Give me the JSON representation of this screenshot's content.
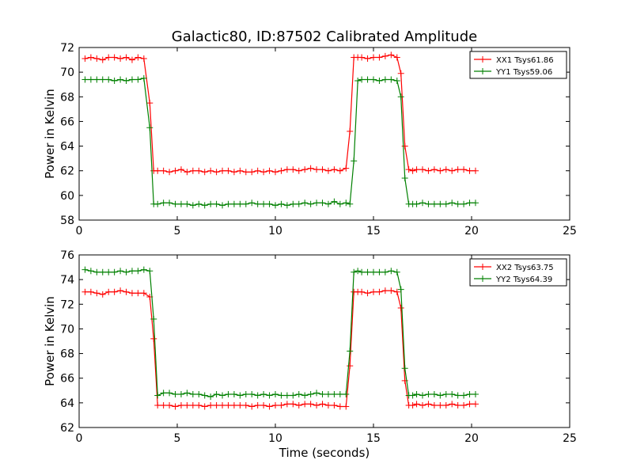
{
  "chart_data": [
    {
      "type": "line",
      "title": "Galactic80, ID:87502 Calibrated Amplitude",
      "xlabel": "",
      "ylabel": "Power in Kelvin",
      "xlim": [
        0,
        25
      ],
      "ylim": [
        58,
        72
      ],
      "xticks": [
        "0",
        "5",
        "10",
        "15",
        "20",
        "25"
      ],
      "yticks": [
        "58",
        "60",
        "62",
        "64",
        "66",
        "68",
        "70",
        "72"
      ],
      "legend_position": "top-right",
      "x": [
        0.3,
        0.6,
        0.9,
        1.2,
        1.5,
        1.8,
        2.1,
        2.4,
        2.7,
        3.0,
        3.3,
        3.6,
        3.8,
        4.0,
        4.3,
        4.6,
        4.9,
        5.2,
        5.5,
        5.8,
        6.1,
        6.4,
        6.7,
        7.0,
        7.3,
        7.6,
        7.9,
        8.2,
        8.5,
        8.8,
        9.1,
        9.4,
        9.7,
        10.0,
        10.3,
        10.6,
        10.9,
        11.2,
        11.5,
        11.8,
        12.1,
        12.4,
        12.7,
        13.0,
        13.3,
        13.6,
        13.8,
        14.0,
        14.2,
        14.4,
        14.7,
        15.0,
        15.3,
        15.6,
        15.9,
        16.2,
        16.4,
        16.6,
        16.8,
        17.0,
        17.2,
        17.5,
        17.8,
        18.1,
        18.4,
        18.7,
        19.0,
        19.3,
        19.6,
        19.9,
        20.2
      ],
      "series": [
        {
          "name": "XX1 Tsys61.86",
          "color": "#ff0000",
          "values": [
            71.1,
            71.2,
            71.1,
            71.0,
            71.2,
            71.2,
            71.1,
            71.2,
            71.0,
            71.2,
            71.1,
            67.5,
            62.0,
            62.0,
            62.0,
            61.9,
            62.0,
            62.1,
            61.9,
            62.0,
            62.0,
            61.9,
            62.0,
            61.9,
            62.0,
            62.0,
            61.9,
            62.0,
            61.9,
            61.9,
            62.0,
            61.9,
            62.0,
            61.9,
            62.0,
            62.1,
            62.1,
            62.0,
            62.1,
            62.2,
            62.1,
            62.1,
            62.0,
            62.1,
            62.0,
            62.2,
            65.2,
            71.2,
            71.2,
            71.2,
            71.1,
            71.2,
            71.2,
            71.3,
            71.4,
            71.2,
            69.9,
            64.0,
            62.1,
            62.0,
            62.1,
            62.1,
            62.0,
            62.1,
            62.0,
            62.1,
            62.0,
            62.1,
            62.1,
            62.0,
            62.0
          ]
        },
        {
          "name": "YY1 Tsys59.06",
          "color": "#008000",
          "values": [
            69.4,
            69.4,
            69.4,
            69.4,
            69.4,
            69.3,
            69.4,
            69.3,
            69.4,
            69.4,
            69.5,
            65.5,
            59.3,
            59.3,
            59.4,
            59.4,
            59.3,
            59.3,
            59.3,
            59.2,
            59.3,
            59.2,
            59.3,
            59.3,
            59.2,
            59.3,
            59.3,
            59.3,
            59.3,
            59.4,
            59.3,
            59.3,
            59.3,
            59.2,
            59.3,
            59.2,
            59.3,
            59.3,
            59.4,
            59.3,
            59.4,
            59.4,
            59.3,
            59.5,
            59.3,
            59.4,
            59.3,
            62.8,
            69.3,
            69.4,
            69.4,
            69.4,
            69.3,
            69.4,
            69.4,
            69.3,
            68.0,
            61.4,
            59.3,
            59.3,
            59.3,
            59.4,
            59.3,
            59.3,
            59.3,
            59.3,
            59.4,
            59.3,
            59.3,
            59.4,
            59.4
          ]
        }
      ]
    },
    {
      "type": "line",
      "title": "",
      "xlabel": "Time (seconds)",
      "ylabel": "Power in Kelvin",
      "xlim": [
        0,
        25
      ],
      "ylim": [
        62,
        76
      ],
      "xticks": [
        "0",
        "5",
        "10",
        "15",
        "20",
        "25"
      ],
      "yticks": [
        "62",
        "64",
        "66",
        "68",
        "70",
        "72",
        "74",
        "76"
      ],
      "legend_position": "top-right",
      "x": [
        0.3,
        0.6,
        0.9,
        1.2,
        1.5,
        1.8,
        2.1,
        2.4,
        2.7,
        3.0,
        3.3,
        3.6,
        3.8,
        4.0,
        4.3,
        4.6,
        4.9,
        5.2,
        5.5,
        5.8,
        6.1,
        6.4,
        6.7,
        7.0,
        7.3,
        7.6,
        7.9,
        8.2,
        8.5,
        8.8,
        9.1,
        9.4,
        9.7,
        10.0,
        10.3,
        10.6,
        10.9,
        11.2,
        11.5,
        11.8,
        12.1,
        12.4,
        12.7,
        13.0,
        13.3,
        13.6,
        13.8,
        14.0,
        14.2,
        14.4,
        14.7,
        15.0,
        15.3,
        15.6,
        15.9,
        16.2,
        16.4,
        16.6,
        16.8,
        17.0,
        17.2,
        17.5,
        17.8,
        18.1,
        18.4,
        18.7,
        19.0,
        19.3,
        19.6,
        19.9,
        20.2
      ],
      "series": [
        {
          "name": "XX2 Tsys63.75",
          "color": "#ff0000",
          "values": [
            73.0,
            73.0,
            72.9,
            72.8,
            73.0,
            73.0,
            73.1,
            73.0,
            72.9,
            72.9,
            72.9,
            72.6,
            69.2,
            63.8,
            63.8,
            63.8,
            63.7,
            63.8,
            63.8,
            63.8,
            63.8,
            63.7,
            63.8,
            63.8,
            63.8,
            63.8,
            63.8,
            63.8,
            63.8,
            63.7,
            63.8,
            63.8,
            63.7,
            63.8,
            63.8,
            63.9,
            63.9,
            63.8,
            63.9,
            63.9,
            63.8,
            63.9,
            63.8,
            63.8,
            63.7,
            63.7,
            67.0,
            73.0,
            73.0,
            73.0,
            72.9,
            73.0,
            73.0,
            73.1,
            73.1,
            73.0,
            71.7,
            65.8,
            63.8,
            63.8,
            63.9,
            63.8,
            63.9,
            63.8,
            63.8,
            63.8,
            63.9,
            63.8,
            63.8,
            63.9,
            63.9
          ],
          "values_note": ""
        },
        {
          "name": "YY2 Tsys64.39",
          "color": "#008000",
          "values": [
            74.8,
            74.7,
            74.6,
            74.6,
            74.6,
            74.6,
            74.7,
            74.6,
            74.7,
            74.7,
            74.8,
            74.7,
            70.8,
            64.6,
            64.8,
            64.8,
            64.7,
            64.7,
            64.8,
            64.7,
            64.7,
            64.6,
            64.5,
            64.7,
            64.6,
            64.7,
            64.7,
            64.6,
            64.7,
            64.7,
            64.6,
            64.7,
            64.6,
            64.7,
            64.6,
            64.6,
            64.6,
            64.7,
            64.6,
            64.7,
            64.8,
            64.7,
            64.7,
            64.7,
            64.7,
            64.7,
            68.2,
            74.6,
            74.7,
            74.6,
            74.6,
            74.6,
            74.6,
            74.6,
            74.7,
            74.6,
            73.2,
            66.8,
            64.6,
            64.6,
            64.7,
            64.6,
            64.7,
            64.7,
            64.6,
            64.7,
            64.7,
            64.6,
            64.6,
            64.7,
            64.7
          ]
        }
      ]
    }
  ]
}
